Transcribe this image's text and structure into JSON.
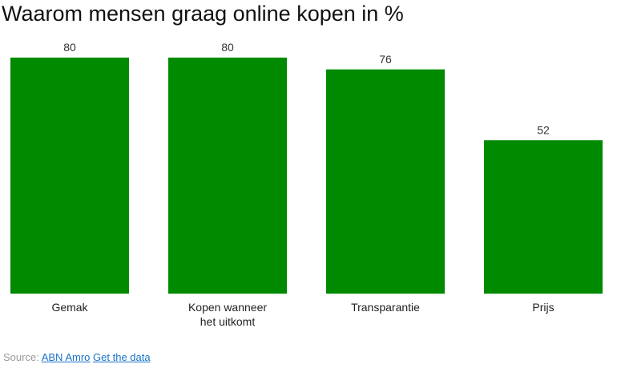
{
  "chart_data": {
    "type": "bar",
    "title": "Waarom mensen graag online kopen in %",
    "categories": [
      [
        "Gemak"
      ],
      [
        "Kopen wanneer",
        "het uitkomt"
      ],
      [
        "Transparantie"
      ],
      [
        "Prijs"
      ]
    ],
    "values": [
      80,
      80,
      76,
      52
    ],
    "ylim": [
      0,
      80
    ],
    "grid": false,
    "bar_color": "#008a00"
  },
  "footer": {
    "source_label": "Source:",
    "source_link": "ABN Amro",
    "data_link": "Get the data"
  }
}
